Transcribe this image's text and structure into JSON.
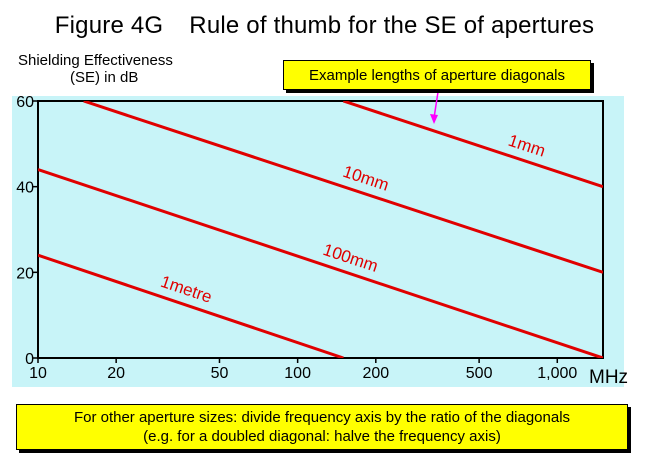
{
  "figure": {
    "number": "Figure 4G",
    "title": "Rule of thumb for the SE of apertures"
  },
  "axes": {
    "ylabel_line1": "Shielding Effectiveness",
    "ylabel_line2": "(SE) in dB",
    "xunit": "MHz"
  },
  "callout": {
    "text": "Example lengths of aperture diagonals"
  },
  "note": {
    "line1": "For other aperture sizes: divide frequency axis by the ratio of the diagonals",
    "line2": "(e.g. for a doubled diagonal: halve the frequency axis)"
  },
  "colors": {
    "plot_bg": "#c8f4f8",
    "series": "#e00000",
    "callout_bg": "#ffff00",
    "arrow": "#ff00ff"
  },
  "chart_data": {
    "type": "line",
    "xscale": "log",
    "xlim": [
      10,
      1500
    ],
    "ylim": [
      0,
      60
    ],
    "xticks": [
      10,
      20,
      50,
      100,
      200,
      500,
      1000
    ],
    "xtick_labels": [
      "10",
      "20",
      "50",
      "100",
      "200",
      "500",
      "1,000"
    ],
    "yticks": [
      0,
      20,
      40,
      60
    ],
    "ytick_labels": [
      "0",
      "20",
      "40",
      "60"
    ],
    "grid": false,
    "series": [
      {
        "name": "1mm",
        "x": [
          150,
          1500
        ],
        "y": [
          60,
          40
        ]
      },
      {
        "name": "10mm",
        "x": [
          15,
          1500
        ],
        "y": [
          60,
          20
        ]
      },
      {
        "name": "100mm",
        "x": [
          10,
          1500
        ],
        "y": [
          44,
          0
        ]
      },
      {
        "name": "1metre",
        "x": [
          10,
          150
        ],
        "y": [
          24,
          0
        ]
      }
    ]
  }
}
